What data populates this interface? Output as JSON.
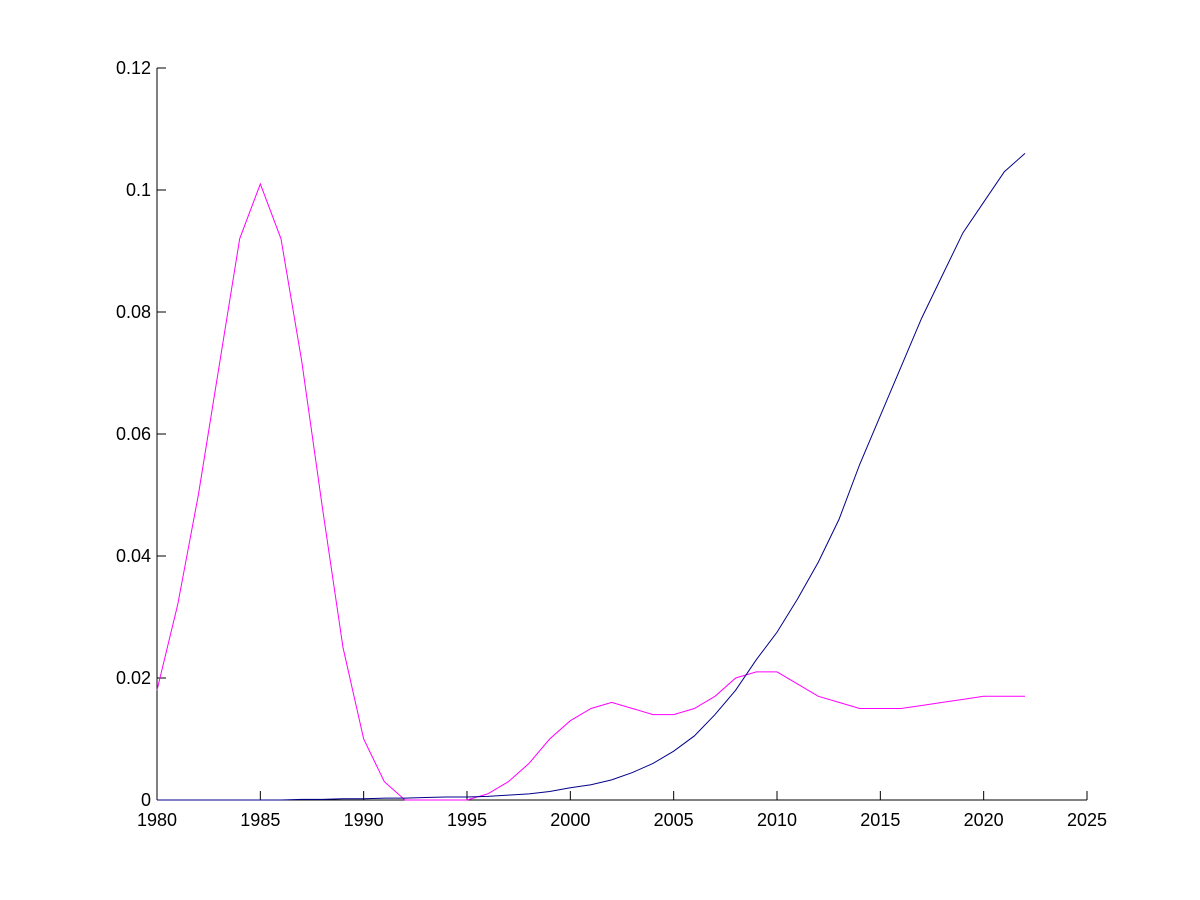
{
  "chart_data": {
    "type": "line",
    "x": [
      1980,
      1981,
      1982,
      1983,
      1984,
      1985,
      1986,
      1987,
      1988,
      1989,
      1990,
      1991,
      1992,
      1993,
      1994,
      1995,
      1996,
      1997,
      1998,
      1999,
      2000,
      2001,
      2002,
      2003,
      2004,
      2005,
      2006,
      2007,
      2008,
      2009,
      2010,
      2011,
      2012,
      2013,
      2014,
      2015,
      2016,
      2017,
      2018,
      2019,
      2020,
      2021,
      2022
    ],
    "series": [
      {
        "color": "#ff00ff",
        "values": [
          0.018,
          0.032,
          0.05,
          0.071,
          0.092,
          0.101,
          0.092,
          0.072,
          0.048,
          0.025,
          0.01,
          0.003,
          0.0,
          0.0,
          0.0,
          0.0,
          0.001,
          0.003,
          0.006,
          0.01,
          0.013,
          0.015,
          0.016,
          0.015,
          0.014,
          0.014,
          0.015,
          0.017,
          0.02,
          0.021,
          0.021,
          0.019,
          0.017,
          0.016,
          0.015,
          0.015,
          0.015,
          0.0155,
          0.016,
          0.0165,
          0.017,
          0.017,
          0.017
        ]
      },
      {
        "color": "#00008b",
        "values": [
          0,
          0,
          0,
          0,
          0,
          0,
          0,
          0.0001,
          0.0001,
          0.0002,
          0.0002,
          0.0003,
          0.0003,
          0.0004,
          0.0005,
          0.0005,
          0.0006,
          0.0008,
          0.001,
          0.0014,
          0.002,
          0.0025,
          0.0033,
          0.0045,
          0.006,
          0.008,
          0.0105,
          0.014,
          0.018,
          0.023,
          0.0275,
          0.033,
          0.039,
          0.046,
          0.055,
          0.063,
          0.071,
          0.079,
          0.086,
          0.093,
          0.098,
          0.103,
          0.106
        ]
      }
    ],
    "xlim": [
      1980,
      2025
    ],
    "xticks": [
      1980,
      1985,
      1990,
      1995,
      2000,
      2005,
      2010,
      2015,
      2020,
      2025
    ],
    "ylim": [
      0,
      0.12
    ],
    "yticks": [
      0,
      0.02,
      0.04,
      0.06,
      0.08,
      0.1,
      0.12
    ]
  }
}
